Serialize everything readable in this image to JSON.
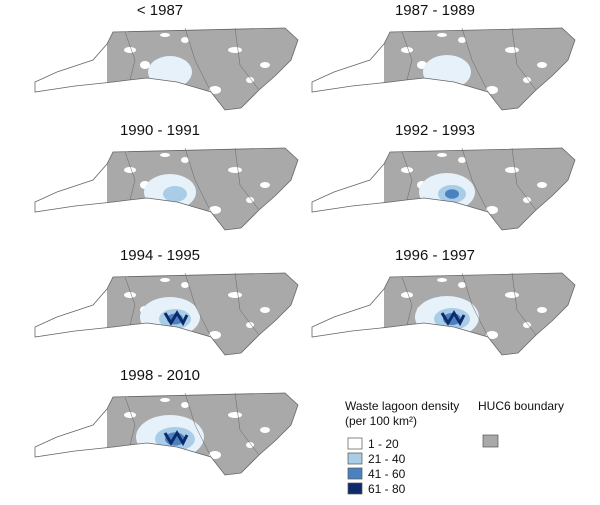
{
  "panels": [
    {
      "title": "< 1987"
    },
    {
      "title": "1987 - 1989"
    },
    {
      "title": "1990 - 1991"
    },
    {
      "title": "1992 - 1993"
    },
    {
      "title": "1994 - 1995"
    },
    {
      "title": "1996 - 1997"
    },
    {
      "title": "1998 - 2010"
    }
  ],
  "legend": {
    "title": "Waste lagoon density",
    "subtitle": "(per 100 km²)",
    "items": [
      {
        "label": "1 - 20",
        "color": "#ffffff"
      },
      {
        "label": "21 - 40",
        "color": "#a9cde6"
      },
      {
        "label": "41 - 60",
        "color": "#4a82c0"
      },
      {
        "label": "61 - 80",
        "color": "#0d2a6b"
      }
    ],
    "boundary_label": "HUC6 boundary",
    "boundary_color": "#a9a9a9"
  }
}
